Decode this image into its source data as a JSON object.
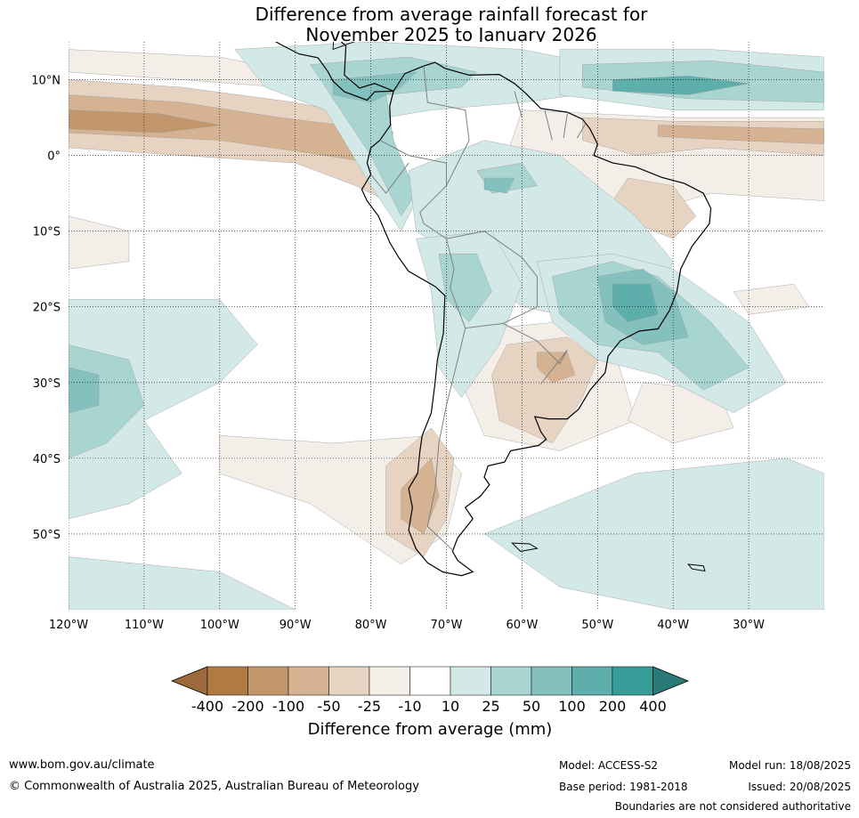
{
  "title_line1": "Difference from average rainfall forecast for",
  "title_line2": "November 2025 to January 2026",
  "map": {
    "lon_range": [
      -120,
      -20
    ],
    "lat_range": [
      -60,
      15
    ],
    "lon_ticks": [
      {
        "value": -120,
        "label": "120°W"
      },
      {
        "value": -110,
        "label": "110°W"
      },
      {
        "value": -100,
        "label": "100°W"
      },
      {
        "value": -90,
        "label": "90°W"
      },
      {
        "value": -80,
        "label": "80°W"
      },
      {
        "value": -70,
        "label": "70°W"
      },
      {
        "value": -60,
        "label": "60°W"
      },
      {
        "value": -50,
        "label": "50°W"
      },
      {
        "value": -40,
        "label": "40°W"
      },
      {
        "value": -30,
        "label": "30°W"
      }
    ],
    "lat_ticks": [
      {
        "value": 10,
        "label": "10°N"
      },
      {
        "value": 0,
        "label": "0°"
      },
      {
        "value": -10,
        "label": "10°S"
      },
      {
        "value": -20,
        "label": "20°S"
      },
      {
        "value": -30,
        "label": "30°S"
      },
      {
        "value": -40,
        "label": "40°S"
      },
      {
        "value": -50,
        "label": "50°S"
      }
    ],
    "grid": "dotted"
  },
  "colorbar": {
    "title": "Difference from average (mm)",
    "labels": [
      "-400",
      "-200",
      "-100",
      "-50",
      "-25",
      "-10",
      "10",
      "25",
      "50",
      "100",
      "200",
      "400"
    ],
    "colors": [
      "#9c6a3a",
      "#b07a42",
      "#c2956a",
      "#d4b292",
      "#e6d3c2",
      "#f3eee8",
      "#ffffff",
      "#d3e9e7",
      "#a8d4d1",
      "#84c0bd",
      "#5eaeac",
      "#379d99",
      "#2a7a78"
    ],
    "palette": {
      "dry_strong": "#c2956a",
      "dry_mid": "#d4b292",
      "dry_light": "#e6d3c2",
      "dry_faint": "#f3eee8",
      "wet_faint": "#d3e9e7",
      "wet_light": "#a8d4d1",
      "wet_mid": "#84c0bd",
      "wet_strong": "#5eaeac"
    }
  },
  "footer": {
    "website": "www.bom.gov.au/climate",
    "copyright": "© Commonwealth of Australia 2025, Australian Bureau of Meteorology",
    "model": "Model: ACCESS-S2",
    "base_period": "Base period: 1981-2018",
    "model_run": "Model run: 18/08/2025",
    "issued": "Issued: 20/08/2025",
    "disclaimer": "Boundaries are not considered authoritative"
  }
}
